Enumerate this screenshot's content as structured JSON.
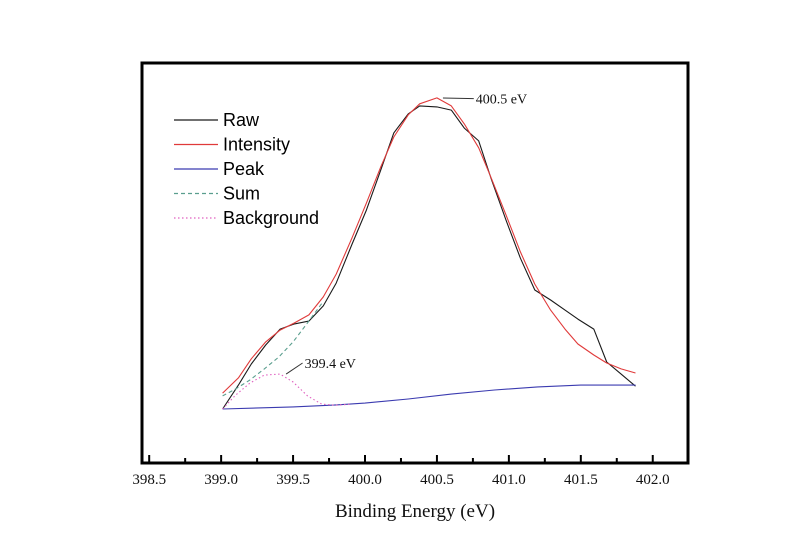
{
  "chart_data": {
    "type": "line",
    "title": "",
    "xlabel": "Binding Energy (eV)",
    "ylabel": "",
    "xlim": [
      398.45,
      402.245
    ],
    "ylim": [
      -15.6,
      100
    ],
    "x_ticks_major": [
      398.5,
      399.0,
      399.5,
      400.0,
      400.5,
      401.0,
      401.5,
      402.0
    ],
    "x_tick_labels": [
      "398.5",
      "399.0",
      "399.5",
      "400.0",
      "400.5",
      "401.0",
      "401.5",
      "402.0"
    ],
    "x_ticks_minor": [
      398.75,
      399.25,
      399.75,
      400.25,
      400.75,
      401.25,
      401.75
    ],
    "grid": false,
    "legend_position": "top-left",
    "series": [
      {
        "name": "Raw",
        "color": "#1a1a1a",
        "style": "solid",
        "x": [
          399.01,
          399.12,
          399.21,
          399.31,
          399.41,
          399.51,
          399.61,
          399.71,
          399.8,
          399.91,
          400.01,
          400.11,
          400.2,
          400.3,
          400.38,
          400.5,
          400.6,
          400.69,
          400.79,
          400.88,
          400.98,
          401.08,
          401.18,
          401.29,
          401.39,
          401.48,
          401.59,
          401.68,
          401.78,
          401.88
        ],
        "y": [
          0,
          6.9,
          13.0,
          18.5,
          23.1,
          24.6,
          25.4,
          29.8,
          36.4,
          47.7,
          57.5,
          69.1,
          79.8,
          85.3,
          87.6,
          87.3,
          86.4,
          81.2,
          77.5,
          66.2,
          54.6,
          43.6,
          34.4,
          31.5,
          28.6,
          26.0,
          23.1,
          13.6,
          10.1,
          6.6
        ]
      },
      {
        "name": "Intensity",
        "color": "#e03a3a",
        "style": "solid",
        "x": [
          399.01,
          399.12,
          399.21,
          399.31,
          399.41,
          399.51,
          399.61,
          399.71,
          399.8,
          399.91,
          400.01,
          400.11,
          400.2,
          400.3,
          400.38,
          400.5,
          400.6,
          400.69,
          400.79,
          400.88,
          400.98,
          401.08,
          401.18,
          401.29,
          401.39,
          401.48,
          401.59,
          401.68,
          401.78,
          401.88
        ],
        "y": [
          4.6,
          9.0,
          14.5,
          19.4,
          22.8,
          24.9,
          27.2,
          32.4,
          39.0,
          49.5,
          59.5,
          70.0,
          78.6,
          85.0,
          88.2,
          89.9,
          87.6,
          82.4,
          75.5,
          66.5,
          56.1,
          45.4,
          36.1,
          28.6,
          23.1,
          18.8,
          15.6,
          13.3,
          11.6,
          10.4
        ]
      },
      {
        "name": "Peak",
        "color": "#3b3bb0",
        "style": "solid",
        "x": [
          399.01,
          399.5,
          399.8,
          400.0,
          400.3,
          400.6,
          400.9,
          401.2,
          401.5,
          401.88
        ],
        "y": [
          0,
          0.6,
          1.2,
          1.7,
          2.9,
          4.3,
          5.5,
          6.4,
          6.9,
          6.9
        ]
      },
      {
        "name": "Sum",
        "color": "#5a9e8e",
        "style": "dashed",
        "x": [
          399.01,
          399.1,
          399.2,
          399.3,
          399.4,
          399.5,
          399.6,
          399.7
        ],
        "y": [
          3.8,
          5.8,
          8.4,
          11.6,
          15.0,
          19.4,
          24.9,
          30.5
        ]
      },
      {
        "name": "Background",
        "color": "#e060c0",
        "style": "dotted",
        "x": [
          399.01,
          399.1,
          399.2,
          399.3,
          399.41,
          399.5,
          399.6,
          399.7,
          399.8,
          399.9
        ],
        "y": [
          0,
          4.0,
          7.5,
          9.8,
          10.1,
          7.8,
          3.8,
          1.4,
          1.1,
          1.4
        ]
      }
    ],
    "annotations": [
      {
        "text": "400.5 eV",
        "x": 400.5,
        "y": 89.9,
        "dx_label": 0.27,
        "dy_label": -0.2
      },
      {
        "text": "399.4 eV",
        "x": 399.41,
        "y": 10.1,
        "dx_label": 0.17,
        "dy_label": 3.2
      }
    ]
  }
}
